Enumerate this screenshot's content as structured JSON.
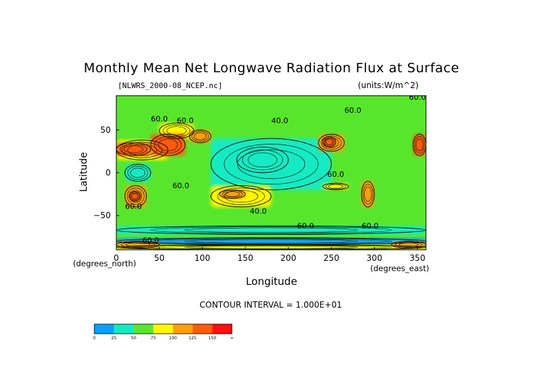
{
  "chart_data": {
    "type": "heatmap",
    "title": "Monthly Mean Net Longwave Radiation Flux at Surface",
    "file_label": "[NLWRS_2000-08_NCEP.nc]",
    "units": "(units:W/m^2)",
    "xlabel": "Longitude",
    "ylabel": "Latitude",
    "x_units_left": "(degrees_north)",
    "x_units_right": "(degrees_east)",
    "contour_interval_text": "CONTOUR INTERVAL = 1.000E+01",
    "xlim": [
      0,
      360
    ],
    "ylim": [
      -90,
      90
    ],
    "x_ticks": [
      0,
      50,
      100,
      150,
      200,
      250,
      300,
      350
    ],
    "y_ticks": [
      50,
      0,
      -50
    ],
    "contour_labels": [
      "60.0",
      "60.0",
      "40.0",
      "60.0",
      "60.0",
      "60.0",
      "60.0",
      "60.0",
      "40.0",
      "60.0",
      "60.0",
      "60.0"
    ],
    "colorbar": {
      "ticks": [
        "0",
        "25",
        "50",
        "75",
        "100",
        "125",
        "150",
        "∞"
      ],
      "colors": [
        "#0a9fff",
        "#13eac2",
        "#58e62c",
        "#fff700",
        "#ff9e0a",
        "#ff5a0a",
        "#ff0f0f"
      ]
    },
    "regions": [
      {
        "lon": [
          0,
          360
        ],
        "lat": [
          -90,
          90
        ],
        "level": 2
      },
      {
        "lon": [
          110,
          250
        ],
        "lat": [
          -20,
          40
        ],
        "level": 1
      },
      {
        "lon": [
          140,
          200
        ],
        "lat": [
          0,
          30
        ],
        "level": 1
      },
      {
        "lon": [
          10,
          40
        ],
        "lat": [
          -10,
          10
        ],
        "level": 1
      },
      {
        "lon": [
          0,
          360
        ],
        "lat": [
          -72,
          -62
        ],
        "level": 1
      },
      {
        "lon": [
          0,
          360
        ],
        "lat": [
          -84,
          -76
        ],
        "level": 0
      },
      {
        "lon": [
          50,
          90
        ],
        "lat": [
          40,
          58
        ],
        "level": 3
      },
      {
        "lon": [
          0,
          60
        ],
        "lat": [
          15,
          38
        ],
        "level": 3
      },
      {
        "lon": [
          40,
          80
        ],
        "lat": [
          20,
          45
        ],
        "level": 5
      },
      {
        "lon": [
          0,
          40
        ],
        "lat": [
          20,
          35
        ],
        "level": 5
      },
      {
        "lon": [
          85,
          110
        ],
        "lat": [
          35,
          50
        ],
        "level": 4
      },
      {
        "lon": [
          235,
          265
        ],
        "lat": [
          25,
          45
        ],
        "level": 4
      },
      {
        "lon": [
          240,
          255
        ],
        "lat": [
          30,
          42
        ],
        "level": 5
      },
      {
        "lon": [
          345,
          360
        ],
        "lat": [
          20,
          45
        ],
        "level": 5
      },
      {
        "lon": [
          10,
          35
        ],
        "lat": [
          -40,
          -15
        ],
        "level": 4
      },
      {
        "lon": [
          15,
          28
        ],
        "lat": [
          -33,
          -22
        ],
        "level": 5
      },
      {
        "lon": [
          110,
          180
        ],
        "lat": [
          -40,
          -15
        ],
        "level": 3
      },
      {
        "lon": [
          120,
          150
        ],
        "lat": [
          -30,
          -20
        ],
        "level": 4
      },
      {
        "lon": [
          285,
          300
        ],
        "lat": [
          -40,
          -10
        ],
        "level": 4
      },
      {
        "lon": [
          240,
          270
        ],
        "lat": [
          -20,
          -12
        ],
        "level": 3
      },
      {
        "lon": [
          0,
          360
        ],
        "lat": [
          -90,
          -84
        ],
        "level": 3
      },
      {
        "lon": [
          0,
          50
        ],
        "lat": [
          -88,
          -80
        ],
        "level": 4
      },
      {
        "lon": [
          320,
          360
        ],
        "lat": [
          -88,
          -80
        ],
        "level": 4
      }
    ]
  }
}
